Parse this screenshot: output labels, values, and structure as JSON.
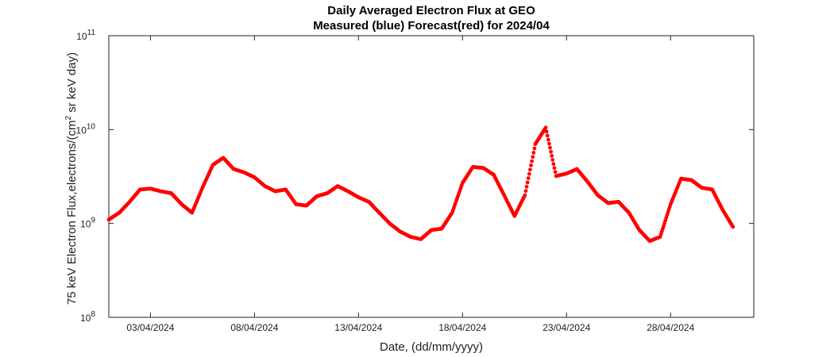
{
  "chart_data": {
    "type": "scatter",
    "title": "Daily Averaged Electron Flux at GEO",
    "subtitle": "Measured (blue) Forecast(red) for 2024/04",
    "xlabel": "Date, (dd/mm/yyyy)",
    "ylabel": "75 keV Electron Flux,electrons/(cm² sr keV day)",
    "ylabel_parts": [
      "75 keV Electron Flux,electrons/(cm",
      "2",
      " sr keV day)"
    ],
    "yscale": "log",
    "ylim": [
      100000000.0,
      100000000000.0
    ],
    "xlim": [
      "2024-04-01T00:00",
      "2024-05-02T00:00"
    ],
    "x_tick_labels": [
      "03/04/2024",
      "08/04/2024",
      "13/04/2024",
      "18/04/2024",
      "23/04/2024",
      "28/04/2024"
    ],
    "y_ticks": [
      {
        "base": "10",
        "exp": "8"
      },
      {
        "base": "10",
        "exp": "9"
      },
      {
        "base": "10",
        "exp": "10"
      },
      {
        "base": "10",
        "exp": "11"
      }
    ],
    "series": [
      {
        "color": "#ff0000",
        "x": [
          "2024-04-01T00:00",
          "2024-04-01T12:00",
          "2024-04-02T00:00",
          "2024-04-02T12:00",
          "2024-04-03T00:00",
          "2024-04-03T12:00",
          "2024-04-04T00:00",
          "2024-04-04T12:00",
          "2024-04-05T00:00",
          "2024-04-05T12:00",
          "2024-04-06T00:00",
          "2024-04-06T12:00",
          "2024-04-07T00:00",
          "2024-04-07T12:00",
          "2024-04-08T00:00",
          "2024-04-08T12:00",
          "2024-04-09T00:00",
          "2024-04-09T12:00",
          "2024-04-10T00:00",
          "2024-04-10T12:00",
          "2024-04-11T00:00",
          "2024-04-11T12:00",
          "2024-04-12T00:00",
          "2024-04-12T12:00",
          "2024-04-13T00:00",
          "2024-04-13T12:00",
          "2024-04-14T00:00",
          "2024-04-14T12:00",
          "2024-04-15T00:00",
          "2024-04-15T12:00",
          "2024-04-16T00:00",
          "2024-04-16T12:00",
          "2024-04-17T00:00",
          "2024-04-17T12:00",
          "2024-04-18T00:00",
          "2024-04-18T12:00",
          "2024-04-19T00:00",
          "2024-04-19T12:00",
          "2024-04-20T00:00",
          "2024-04-20T12:00",
          "2024-04-21T00:00",
          "2024-04-21T12:00",
          "2024-04-22T00:00",
          "2024-04-22T12:00",
          "2024-04-23T00:00",
          "2024-04-23T12:00",
          "2024-04-24T00:00",
          "2024-04-24T12:00",
          "2024-04-25T00:00",
          "2024-04-25T12:00",
          "2024-04-26T00:00",
          "2024-04-26T12:00",
          "2024-04-27T00:00",
          "2024-04-27T12:00",
          "2024-04-28T00:00",
          "2024-04-28T12:00",
          "2024-04-29T00:00",
          "2024-04-29T12:00",
          "2024-04-30T00:00",
          "2024-04-30T12:00",
          "2024-05-01T00:00"
        ],
        "y": [
          1100000000.0,
          1300000000.0,
          1700000000.0,
          2300000000.0,
          2350000000.0,
          2200000000.0,
          2100000000.0,
          1600000000.0,
          1300000000.0,
          2400000000.0,
          4200000000.0,
          5000000000.0,
          3800000000.0,
          3500000000.0,
          3100000000.0,
          2500000000.0,
          2200000000.0,
          2300000000.0,
          1600000000.0,
          1550000000.0,
          1950000000.0,
          2100000000.0,
          2500000000.0,
          2200000000.0,
          1900000000.0,
          1700000000.0,
          1300000000.0,
          1000000000.0,
          820000000.0,
          720000000.0,
          680000000.0,
          850000000.0,
          880000000.0,
          1300000000.0,
          2700000000.0,
          4000000000.0,
          3900000000.0,
          3300000000.0,
          2000000000.0,
          1200000000.0,
          2000000000.0,
          7000000000.0,
          10500000000.0,
          3200000000.0,
          3400000000.0,
          3800000000.0,
          2800000000.0,
          2000000000.0,
          1650000000.0,
          1700000000.0,
          1300000000.0,
          850000000.0,
          650000000.0,
          720000000.0,
          1600000000.0,
          3000000000.0,
          2900000000.0,
          2400000000.0,
          2300000000.0,
          1400000000.0,
          920000000.0
        ]
      }
    ],
    "grid": false
  }
}
